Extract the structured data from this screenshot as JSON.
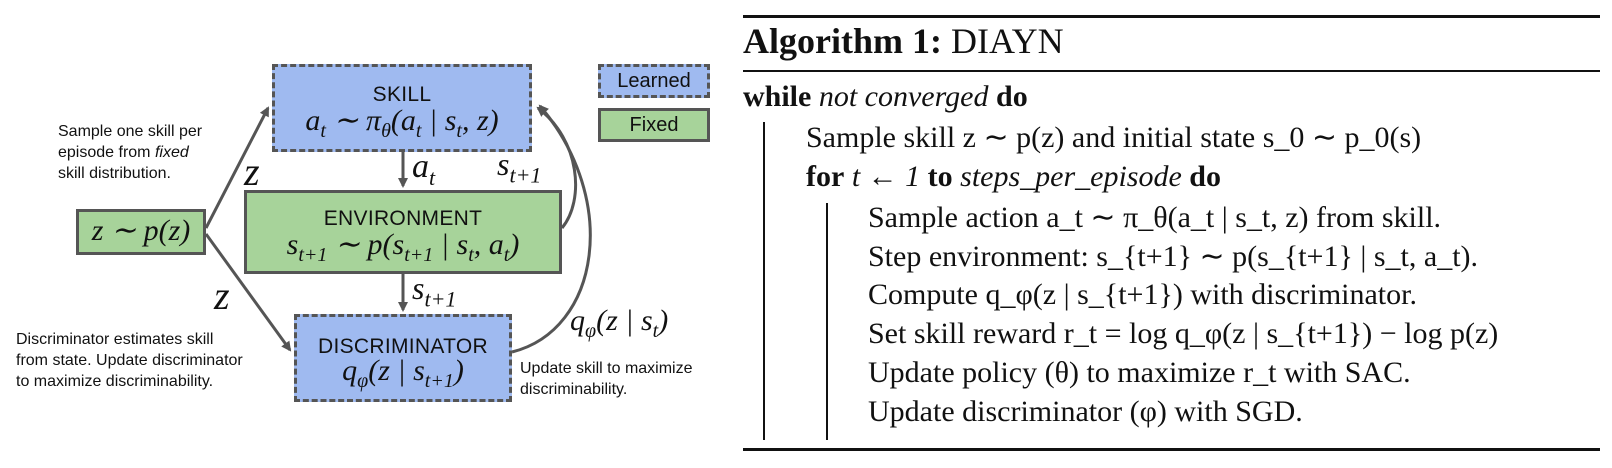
{
  "diagram": {
    "skill_box": {
      "title": "SKILL",
      "formula": "a_t ∼ π_θ(a_t | s_t, z)"
    },
    "environment_box": {
      "title": "ENVIRONMENT",
      "formula": "s_{t+1} ∼ p(s_{t+1} | s_t, a_t)"
    },
    "discriminator_box": {
      "title": "DISCRIMINATOR",
      "formula": "q_φ(z | s_{t+1})"
    },
    "prior_box": {
      "formula": "z ∼ p(z)"
    },
    "legend": {
      "learned": "Learned",
      "fixed": "Fixed"
    },
    "edge_labels": {
      "z_upper": "z",
      "z_lower": "z",
      "a_t": "a_t",
      "s_next_right": "s_{t+1}",
      "s_next_down": "s_{t+1}",
      "q_feedback": "q_φ(z | s_t)"
    },
    "notes": {
      "sample_skill_line1": "Sample one skill per",
      "sample_skill_line2_pre": "episode from ",
      "sample_skill_line2_em": "fixed",
      "sample_skill_line3": "skill distribution.",
      "discrim_line1": "Discriminator estimates skill",
      "discrim_line2": "from state. Update discriminator",
      "discrim_line3": "to maximize discriminability.",
      "update_line1": "Update skill to maximize",
      "update_line2": "discriminability."
    }
  },
  "algorithm": {
    "title_bold": "Algorithm 1:",
    "title_name": "DIAYN",
    "while_kw": "while",
    "while_cond": "not converged",
    "do_kw": "do",
    "line_sample_skill": "Sample skill z ∼ p(z) and initial state s_0 ∼ p_0(s)",
    "for_kw": "for",
    "for_range": "t ← 1",
    "to_kw": "to",
    "for_bound": "steps_per_episode",
    "steps": [
      "Sample action a_t ∼ π_θ(a_t | s_t, z) from skill.",
      "Step environment: s_{t+1} ∼ p(s_{t+1} | s_t, a_t).",
      "Compute q_φ(z | s_{t+1}) with discriminator.",
      "Set skill reward r_t = log q_φ(z | s_{t+1}) − log p(z)",
      "Update policy (θ) to maximize r_t with SAC.",
      "Update discriminator (φ) with SGD."
    ]
  },
  "colors": {
    "learned": "#9fbaf0",
    "fixed": "#a7d39a",
    "border": "#555555",
    "arrow": "#555555"
  }
}
